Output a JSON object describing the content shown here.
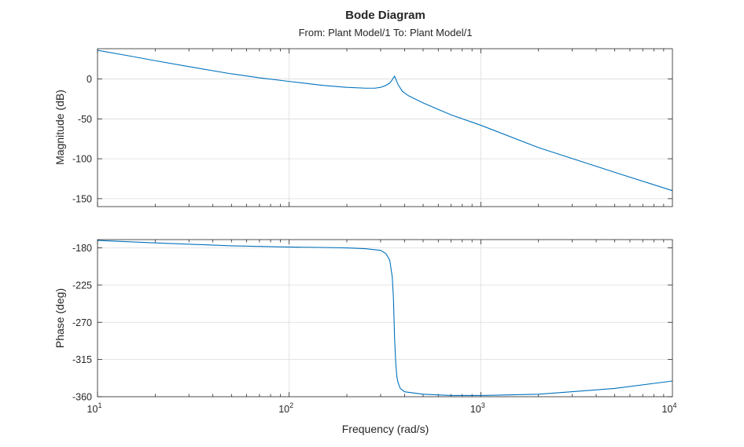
{
  "chart_data": {
    "type": "line",
    "title": "Bode Diagram",
    "subtitle": "From: Plant Model/1  To: Plant Model/1",
    "xlabel": "Frequency (rad/s)",
    "xscale": "log",
    "xlim": [
      10,
      10000
    ],
    "x_ticks": [
      {
        "base": "10",
        "exp": "1"
      },
      {
        "base": "10",
        "exp": "2"
      },
      {
        "base": "10",
        "exp": "3"
      },
      {
        "base": "10",
        "exp": "4"
      }
    ],
    "grid": true,
    "line_color": "#0072BD",
    "magnitude": {
      "ylabel": "Magnitude (dB)",
      "ylim": [
        -160,
        38
      ],
      "yticks": [
        0,
        -50,
        -100,
        -150
      ],
      "x": [
        10,
        15,
        20,
        30,
        50,
        70,
        100,
        150,
        200,
        250,
        280,
        300,
        320,
        335,
        345,
        350,
        355,
        360,
        370,
        390,
        420,
        500,
        700,
        1000,
        2000,
        5000,
        10000
      ],
      "y": [
        36,
        28.5,
        23,
        15.5,
        6.5,
        1.5,
        -3,
        -8,
        -10.5,
        -11.5,
        -11.5,
        -10.5,
        -8,
        -5,
        -1,
        1.5,
        3.5,
        0,
        -7,
        -15.5,
        -21,
        -30,
        -45,
        -58,
        -86,
        -117,
        -140
      ]
    },
    "phase": {
      "ylabel": "Phase (deg)",
      "ylim": [
        -360,
        -170
      ],
      "yticks": [
        -180,
        -225,
        -270,
        -315,
        -360
      ],
      "x": [
        10,
        20,
        50,
        100,
        150,
        200,
        250,
        300,
        320,
        335,
        345,
        350,
        355,
        360,
        365,
        370,
        380,
        400,
        500,
        700,
        1000,
        2000,
        5000,
        10000
      ],
      "y": [
        -171,
        -174,
        -177.5,
        -179,
        -179.5,
        -180,
        -181,
        -183,
        -187,
        -195,
        -215,
        -240,
        -290,
        -320,
        -336,
        -343,
        -350,
        -354,
        -357,
        -358.5,
        -358.5,
        -357,
        -350,
        -341
      ]
    }
  }
}
